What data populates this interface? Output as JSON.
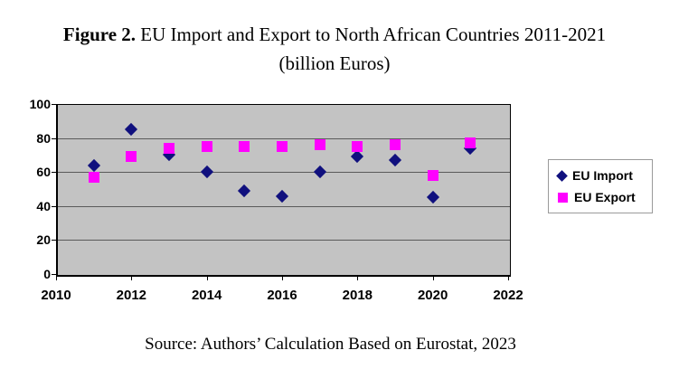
{
  "title": {
    "prefix": "Figure 2.",
    "text": " EU Import and Export to North African Countries 2011-2021",
    "subtitle": "(billion Euros)"
  },
  "source": "Source: Authors’ Calculation Based on Eurostat, 2023",
  "chart_data": {
    "type": "scatter",
    "x": [
      2011,
      2012,
      2013,
      2014,
      2015,
      2016,
      2017,
      2018,
      2019,
      2020,
      2021
    ],
    "series": [
      {
        "name": "EU Import",
        "marker": "diamond",
        "color": "#10107e",
        "values": [
          64,
          85,
          70,
          60,
          49,
          46,
          60,
          69,
          67,
          45,
          74
        ]
      },
      {
        "name": "EU Export",
        "marker": "square",
        "color": "#ff00ff",
        "values": [
          57,
          69,
          74,
          75,
          75,
          75,
          76,
          75,
          76,
          58,
          77
        ]
      }
    ],
    "xlabel": "",
    "ylabel": "",
    "xlim": [
      2010,
      2022
    ],
    "ylim": [
      0,
      100
    ],
    "xticks": [
      2010,
      2012,
      2014,
      2016,
      2018,
      2020,
      2022
    ],
    "yticks": [
      0,
      20,
      40,
      60,
      80,
      100
    ],
    "grid": true,
    "legend_position": "right",
    "colors": {
      "plot_bg": "#c3c3c3",
      "grid": "#5a5a5a",
      "axis": "#000000"
    }
  }
}
